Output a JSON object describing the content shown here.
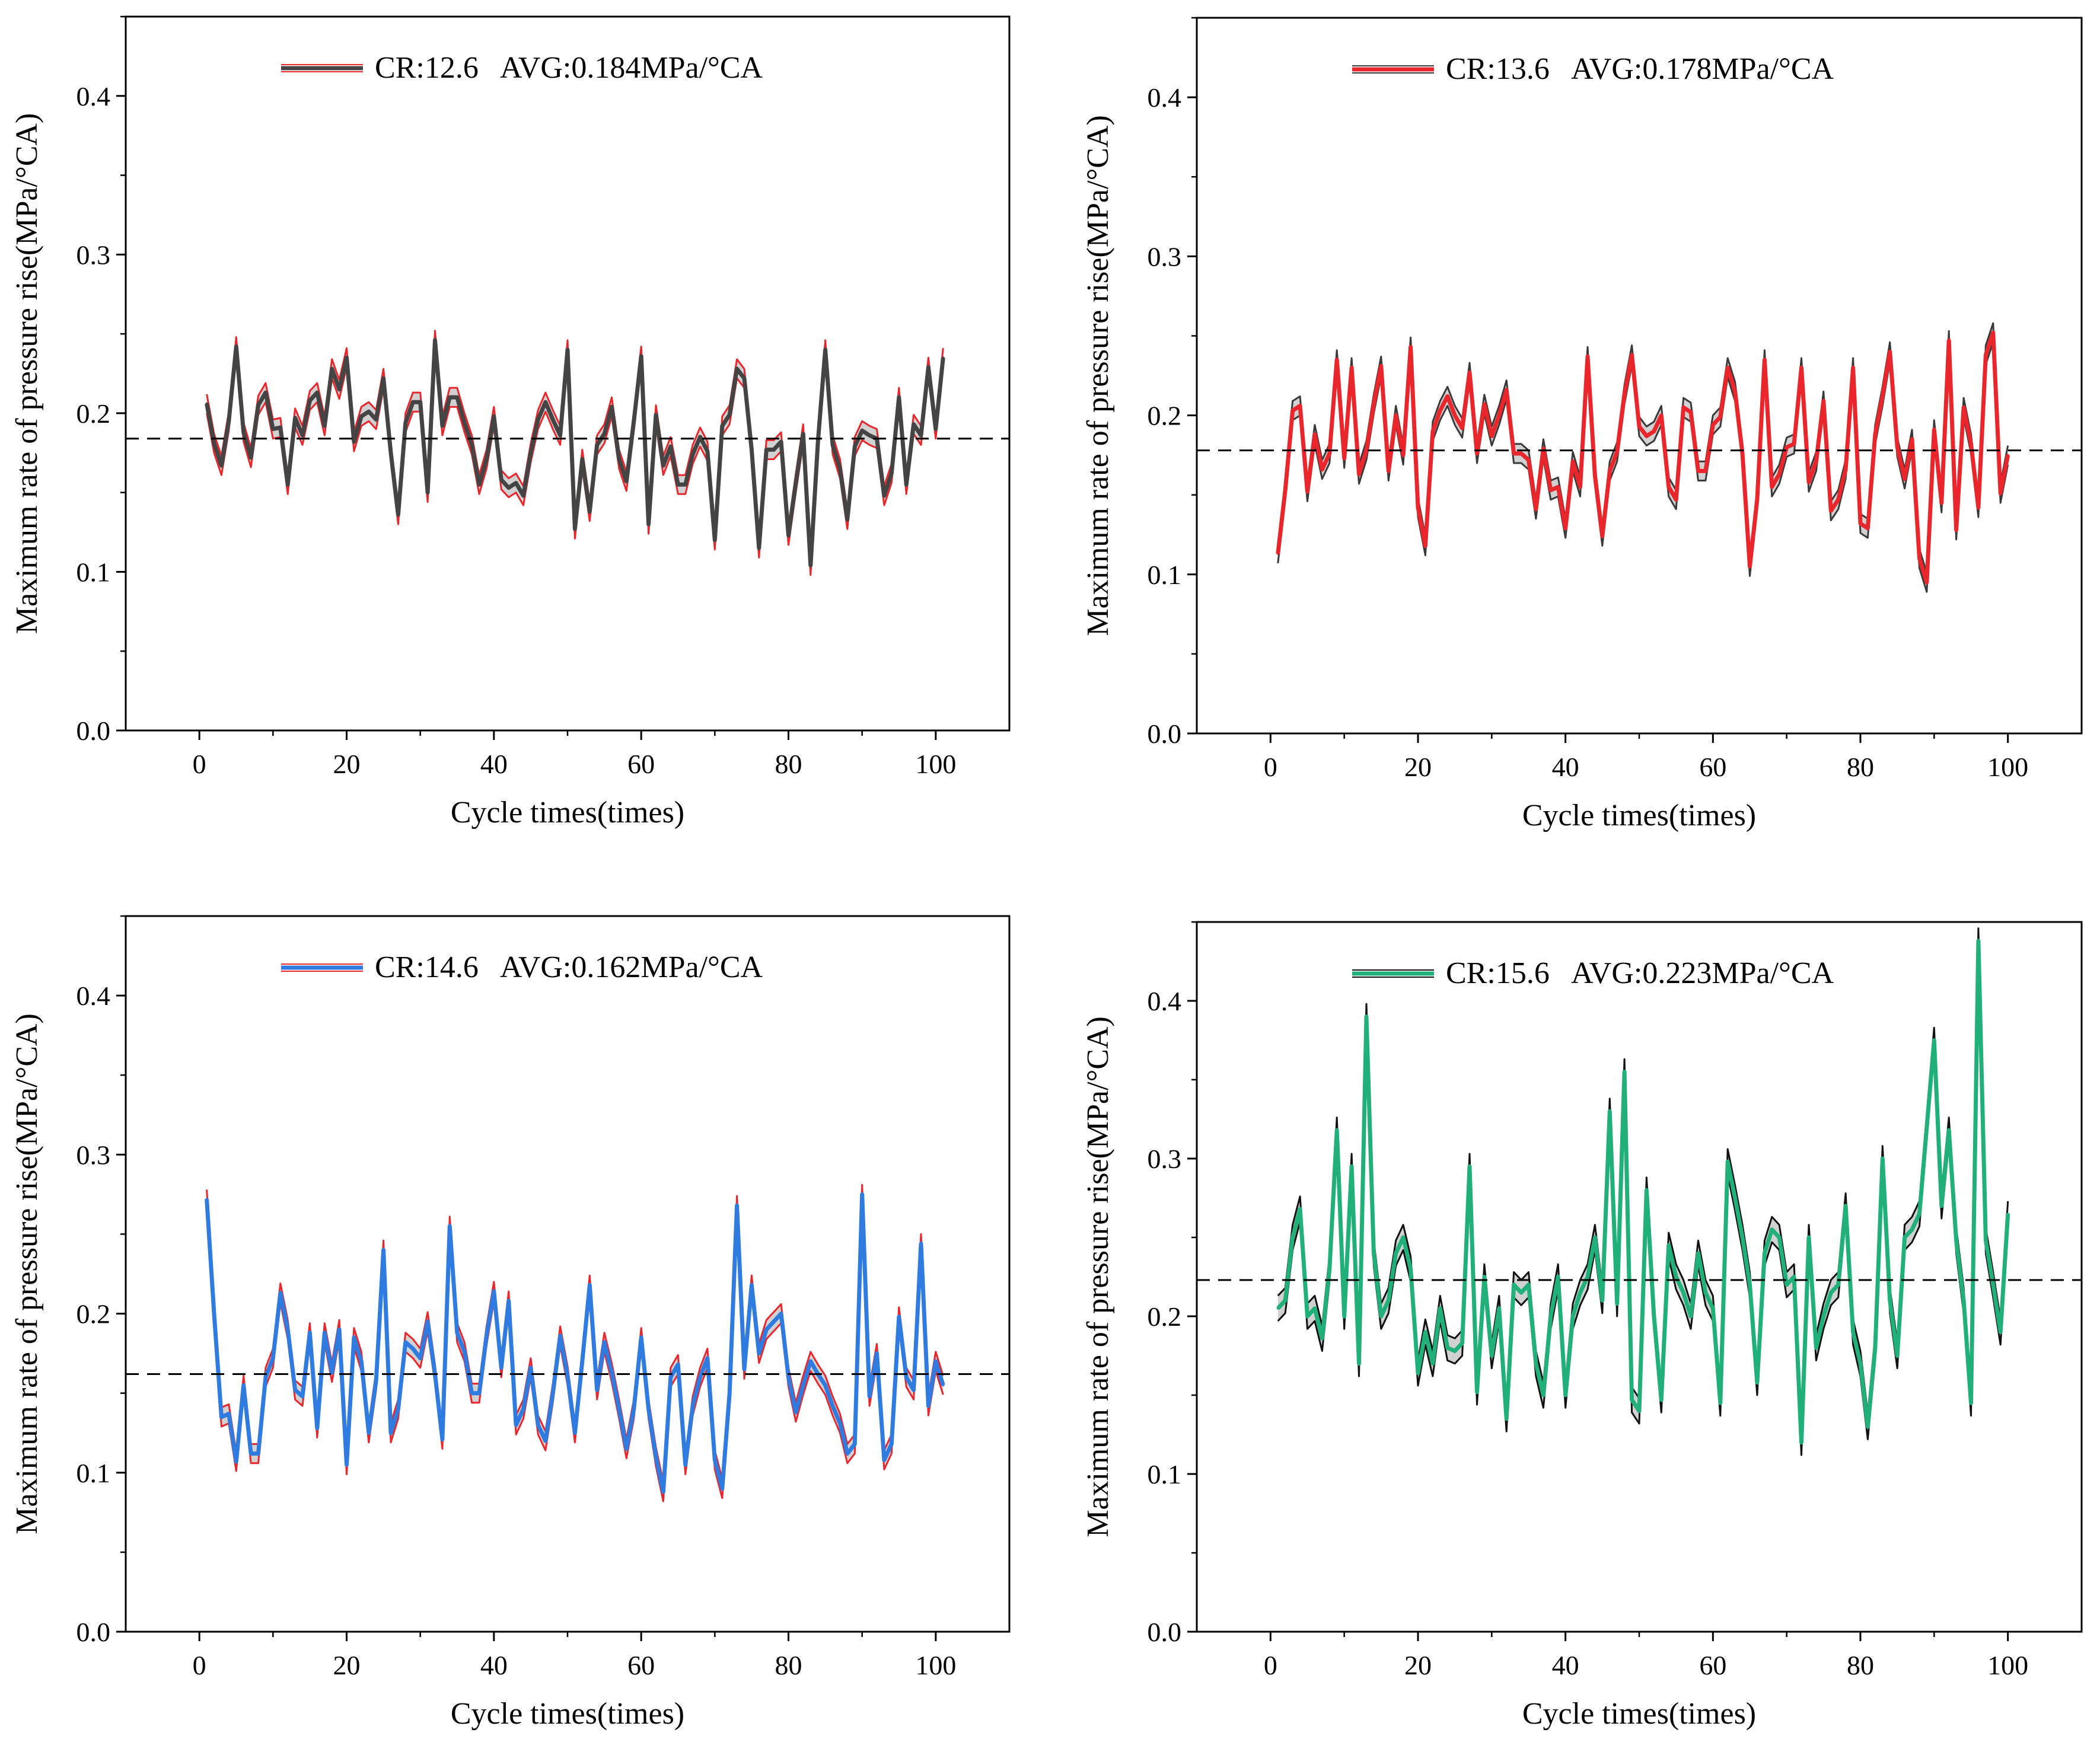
{
  "chart_data": [
    {
      "type": "line",
      "title": "",
      "xlabel": "Cycle times(times)",
      "ylabel": "Maximum rate of pressure rise(MPa/°CA)",
      "xlim": [
        -10,
        110
      ],
      "ylim": [
        0,
        0.45
      ],
      "xticks": [
        "0",
        "20",
        "40",
        "60",
        "80",
        "100"
      ],
      "yticks": [
        "0.0",
        "0.1",
        "0.2",
        "0.3",
        "0.4"
      ],
      "legend_label": "CR:12.6   AVG:0.184MPa/°CA",
      "legend_position": "top-center",
      "average": 0.184,
      "colors": {
        "main": "#444444",
        "band": "#e8262c",
        "avg_line": "#000000"
      },
      "band_width": 0.006,
      "series": [
        {
          "name": "CR:12.6",
          "x_start": 1,
          "values": [
            0.206,
            0.181,
            0.167,
            0.195,
            0.242,
            0.188,
            0.172,
            0.205,
            0.213,
            0.19,
            0.191,
            0.155,
            0.197,
            0.186,
            0.208,
            0.213,
            0.192,
            0.228,
            0.215,
            0.235,
            0.182,
            0.198,
            0.201,
            0.196,
            0.222,
            0.175,
            0.136,
            0.194,
            0.207,
            0.207,
            0.15,
            0.246,
            0.192,
            0.21,
            0.21,
            0.194,
            0.18,
            0.155,
            0.171,
            0.198,
            0.158,
            0.153,
            0.156,
            0.148,
            0.175,
            0.196,
            0.207,
            0.196,
            0.186,
            0.24,
            0.127,
            0.171,
            0.138,
            0.18,
            0.187,
            0.204,
            0.171,
            0.157,
            0.195,
            0.236,
            0.13,
            0.199,
            0.167,
            0.179,
            0.155,
            0.155,
            0.174,
            0.185,
            0.176,
            0.12,
            0.192,
            0.199,
            0.228,
            0.222,
            0.177,
            0.115,
            0.177,
            0.177,
            0.182,
            0.123,
            0.156,
            0.187,
            0.104,
            0.182,
            0.24,
            0.18,
            0.165,
            0.133,
            0.179,
            0.189,
            0.186,
            0.184,
            0.148,
            0.162,
            0.21,
            0.155,
            0.193,
            0.186,
            0.229,
            0.19,
            0.235
          ]
        }
      ]
    },
    {
      "type": "line",
      "title": "",
      "xlabel": "Cycle times(times)",
      "ylabel": "Maximum rate of pressure rise(MPa/°CA)",
      "xlim": [
        -10,
        110
      ],
      "ylim": [
        0,
        0.45
      ],
      "xticks": [
        "0",
        "20",
        "40",
        "60",
        "80",
        "100"
      ],
      "yticks": [
        "0.0",
        "0.1",
        "0.2",
        "0.3",
        "0.4"
      ],
      "legend_label": "CR:13.6   AVG:0.178MPa/°CA",
      "legend_position": "top-center",
      "average": 0.178,
      "colors": {
        "main": "#e8262c",
        "band": "#3a3a3a",
        "avg_line": "#000000"
      },
      "band_width": 0.006,
      "series": [
        {
          "name": "CR:13.6",
          "values": [
            0.113,
            0.153,
            0.203,
            0.206,
            0.152,
            0.188,
            0.166,
            0.176,
            0.235,
            0.173,
            0.23,
            0.163,
            0.178,
            0.207,
            0.231,
            0.165,
            0.2,
            0.175,
            0.243,
            0.142,
            0.118,
            0.19,
            0.203,
            0.212,
            0.2,
            0.192,
            0.227,
            0.176,
            0.207,
            0.187,
            0.2,
            0.216,
            0.176,
            0.176,
            0.172,
            0.141,
            0.179,
            0.153,
            0.155,
            0.129,
            0.171,
            0.155,
            0.237,
            0.162,
            0.124,
            0.165,
            0.177,
            0.213,
            0.238,
            0.193,
            0.187,
            0.19,
            0.2,
            0.155,
            0.147,
            0.205,
            0.202,
            0.165,
            0.165,
            0.194,
            0.199,
            0.23,
            0.215,
            0.176,
            0.105,
            0.147,
            0.235,
            0.155,
            0.163,
            0.18,
            0.182,
            0.23,
            0.158,
            0.171,
            0.209,
            0.14,
            0.147,
            0.166,
            0.23,
            0.132,
            0.129,
            0.188,
            0.212,
            0.24,
            0.18,
            0.16,
            0.185,
            0.11,
            0.095,
            0.191,
            0.145,
            0.247,
            0.128,
            0.205,
            0.182,
            0.142,
            0.238,
            0.252,
            0.151,
            0.175
          ]
        }
      ]
    },
    {
      "type": "line",
      "title": "",
      "xlabel": "Cycle times(times)",
      "ylabel": "Maximum rate of pressure rise(MPa/°CA)",
      "xlim": [
        -10,
        110
      ],
      "ylim": [
        0,
        0.45
      ],
      "xticks": [
        "0",
        "20",
        "40",
        "60",
        "80",
        "100"
      ],
      "yticks": [
        "0.0",
        "0.1",
        "0.2",
        "0.3",
        "0.4"
      ],
      "legend_label": "CR:14.6   AVG:0.162MPa/°CA",
      "legend_position": "top-center",
      "average": 0.162,
      "colors": {
        "main": "#2f7be0",
        "band": "#e8262c",
        "avg_line": "#000000"
      },
      "band_width": 0.006,
      "series": [
        {
          "name": "CR:14.6",
          "values": [
            0.272,
            0.2,
            0.135,
            0.137,
            0.107,
            0.155,
            0.112,
            0.112,
            0.16,
            0.172,
            0.213,
            0.19,
            0.152,
            0.148,
            0.188,
            0.128,
            0.188,
            0.163,
            0.19,
            0.105,
            0.185,
            0.17,
            0.125,
            0.158,
            0.24,
            0.125,
            0.14,
            0.182,
            0.178,
            0.172,
            0.195,
            0.162,
            0.121,
            0.255,
            0.188,
            0.176,
            0.15,
            0.15,
            0.186,
            0.214,
            0.166,
            0.208,
            0.13,
            0.14,
            0.166,
            0.13,
            0.12,
            0.15,
            0.186,
            0.161,
            0.125,
            0.17,
            0.218,
            0.152,
            0.182,
            0.163,
            0.14,
            0.115,
            0.14,
            0.185,
            0.14,
            0.11,
            0.088,
            0.16,
            0.168,
            0.105,
            0.142,
            0.16,
            0.172,
            0.108,
            0.09,
            0.15,
            0.268,
            0.165,
            0.218,
            0.175,
            0.19,
            0.195,
            0.2,
            0.16,
            0.138,
            0.155,
            0.17,
            0.162,
            0.155,
            0.142,
            0.131,
            0.112,
            0.118,
            0.275,
            0.148,
            0.175,
            0.108,
            0.118,
            0.198,
            0.16,
            0.152,
            0.244,
            0.142,
            0.17,
            0.155
          ]
        }
      ]
    },
    {
      "type": "line",
      "title": "",
      "xlabel": "Cycle times(times)",
      "ylabel": "Maximum rate of pressure rise(MPa/°CA)",
      "xlim": [
        -10,
        110
      ],
      "ylim": [
        0,
        0.45
      ],
      "xticks": [
        "0",
        "20",
        "40",
        "60",
        "80",
        "100"
      ],
      "yticks": [
        "0.0",
        "0.1",
        "0.2",
        "0.3",
        "0.4"
      ],
      "legend_label": "CR:15.6   AVG:0.223MPa/°CA",
      "legend_position": "top-center",
      "average": 0.223,
      "colors": {
        "main": "#22b07a",
        "band": "#111111",
        "avg_line": "#000000"
      },
      "band_width": 0.008,
      "series": [
        {
          "name": "CR:15.6",
          "values": [
            0.205,
            0.21,
            0.25,
            0.268,
            0.2,
            0.205,
            0.186,
            0.23,
            0.318,
            0.2,
            0.295,
            0.17,
            0.39,
            0.24,
            0.2,
            0.21,
            0.24,
            0.25,
            0.23,
            0.164,
            0.19,
            0.17,
            0.205,
            0.18,
            0.178,
            0.183,
            0.295,
            0.152,
            0.225,
            0.175,
            0.205,
            0.135,
            0.22,
            0.215,
            0.22,
            0.17,
            0.15,
            0.2,
            0.225,
            0.15,
            0.2,
            0.215,
            0.225,
            0.25,
            0.21,
            0.33,
            0.208,
            0.355,
            0.147,
            0.14,
            0.28,
            0.2,
            0.147,
            0.245,
            0.225,
            0.215,
            0.2,
            0.24,
            0.215,
            0.205,
            0.145,
            0.298,
            0.275,
            0.25,
            0.22,
            0.158,
            0.24,
            0.255,
            0.25,
            0.22,
            0.225,
            0.12,
            0.25,
            0.18,
            0.2,
            0.215,
            0.22,
            0.27,
            0.19,
            0.17,
            0.13,
            0.18,
            0.3,
            0.21,
            0.175,
            0.25,
            0.255,
            0.265,
            0.32,
            0.375,
            0.27,
            0.318,
            0.248,
            0.21,
            0.145,
            0.438,
            0.248,
            0.22,
            0.19,
            0.265
          ]
        }
      ]
    }
  ]
}
